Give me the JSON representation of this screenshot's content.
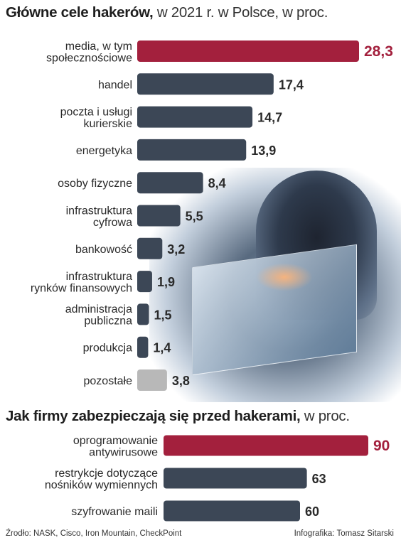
{
  "title1": {
    "bold": "Główne cele hakerów,",
    "light": " w 2021 r. w Polsce, w proc."
  },
  "title2": {
    "bold": "Jak firmy zabezpieczają się przed hakerami,",
    "light": " w proc."
  },
  "colors": {
    "highlight": "#a3203d",
    "bar": "#3c4756",
    "other": "#b8b8b8",
    "label_highlight": "#a3203d",
    "label": "#2a2a2a"
  },
  "chart_data": [
    {
      "type": "bar",
      "orientation": "horizontal",
      "title": "Główne cele hakerów, w 2021 r. w Polsce, w proc.",
      "categories": [
        [
          "media, w tym",
          "społecznościowe"
        ],
        [
          "handel"
        ],
        [
          "poczta i usługi",
          "kurierskie"
        ],
        [
          "energetyka"
        ],
        [
          "osoby fizyczne"
        ],
        [
          "infrastruktura",
          "cyfrowa"
        ],
        [
          "bankowość"
        ],
        [
          "infrastruktura",
          "rynków finansowych"
        ],
        [
          "administracja",
          "publiczna"
        ],
        [
          "produkcja"
        ],
        [
          "pozostałe"
        ]
      ],
      "values": [
        28.3,
        17.4,
        14.7,
        13.9,
        8.4,
        5.5,
        3.2,
        1.9,
        1.5,
        1.4,
        3.8
      ],
      "value_labels": [
        "28,3",
        "17,4",
        "14,7",
        "13,9",
        "8,4",
        "5,5",
        "3,2",
        "1,9",
        "1,5",
        "1,4",
        "3,8"
      ],
      "highlight": [
        0
      ],
      "muted": [
        10
      ],
      "xlim": [
        0,
        28.3
      ]
    },
    {
      "type": "bar",
      "orientation": "horizontal",
      "title": "Jak firmy zabezpieczają się przed hakerami, w proc.",
      "categories": [
        [
          "oprogramowanie",
          "antywirusowe"
        ],
        [
          "restrykcje dotyczące",
          "nośników wymiennych"
        ],
        [
          "szyfrowanie maili"
        ]
      ],
      "values": [
        90,
        63,
        60
      ],
      "value_labels": [
        "90",
        "63",
        "60"
      ],
      "highlight": [
        0
      ],
      "muted": [],
      "xlim": [
        0,
        90
      ]
    }
  ],
  "source": {
    "left": "Źrodło: NASK, Cisco, Iron Mountain, CheckPoint",
    "right": "Infografika: Tomasz Sitarski"
  }
}
